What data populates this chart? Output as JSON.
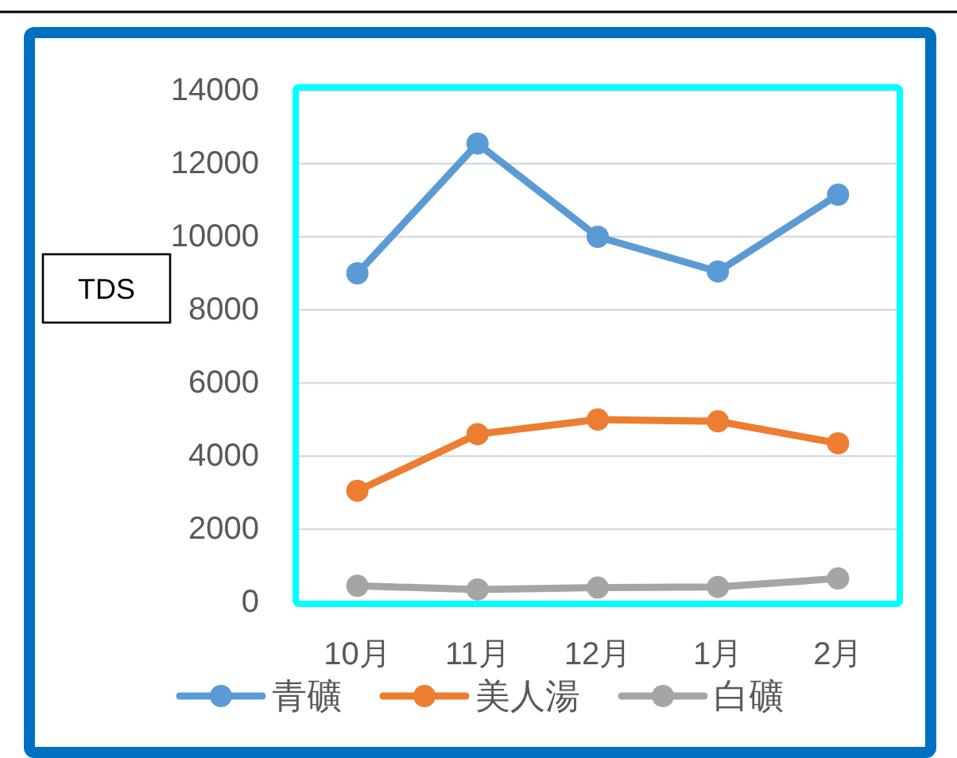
{
  "chart_data": {
    "type": "line",
    "ylabel": "TDS",
    "categories": [
      "10月",
      "11月",
      "12月",
      "1月",
      "2月"
    ],
    "series": [
      {
        "name": "青礦",
        "color": "#5b9bd5",
        "values": [
          9000,
          12550,
          10000,
          9050,
          11150
        ]
      },
      {
        "name": "美人湯",
        "color": "#ed7d31",
        "values": [
          3050,
          4600,
          5000,
          4950,
          4350
        ]
      },
      {
        "name": "白礦",
        "color": "#a5a5a5",
        "values": [
          450,
          350,
          400,
          420,
          650
        ]
      }
    ],
    "ylim": [
      0,
      14000
    ],
    "yticks": [
      0,
      2000,
      4000,
      6000,
      8000,
      10000,
      12000,
      14000
    ],
    "grid": "y",
    "legend": "bottom",
    "marker": "circle",
    "line_style": "solid"
  }
}
